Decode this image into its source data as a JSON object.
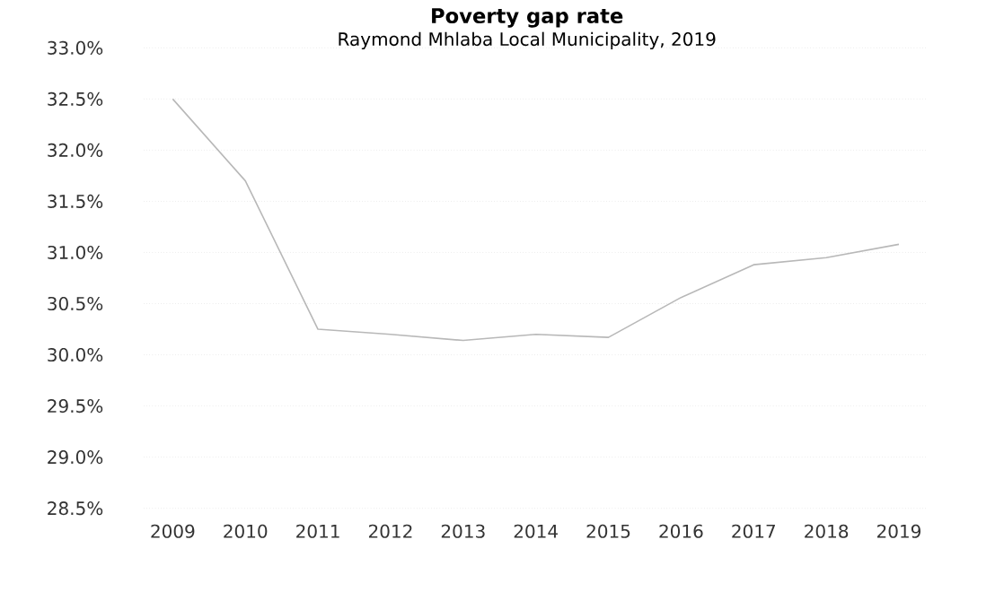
{
  "chart_data": {
    "type": "line",
    "title": "Poverty gap rate",
    "subtitle": "Raymond Mhlaba Local Municipality, 2019",
    "categories": [
      "2009",
      "2010",
      "2011",
      "2012",
      "2013",
      "2014",
      "2015",
      "2016",
      "2017",
      "2018",
      "2019"
    ],
    "series": [
      {
        "color": "#b8b8b8",
        "values": [
          32.5,
          31.7,
          30.25,
          30.2,
          30.14,
          30.2,
          30.17,
          30.56,
          30.88,
          30.95,
          31.08
        ]
      }
    ],
    "ylim": [
      28.5,
      33.0
    ],
    "yticks": [
      {
        "value": 28.5,
        "label": "28.5%"
      },
      {
        "value": 29.0,
        "label": "29.0%"
      },
      {
        "value": 29.5,
        "label": "29.5%"
      },
      {
        "value": 30.0,
        "label": "30.0%"
      },
      {
        "value": 30.5,
        "label": "30.5%"
      },
      {
        "value": 31.0,
        "label": "31.0%"
      },
      {
        "value": 31.5,
        "label": "31.5%"
      },
      {
        "value": 32.0,
        "label": "32.0%"
      },
      {
        "value": 32.5,
        "label": "32.5%"
      },
      {
        "value": 33.0,
        "label": "33.0%"
      }
    ],
    "grid": "y",
    "marker": "none",
    "line_style": "solid"
  }
}
